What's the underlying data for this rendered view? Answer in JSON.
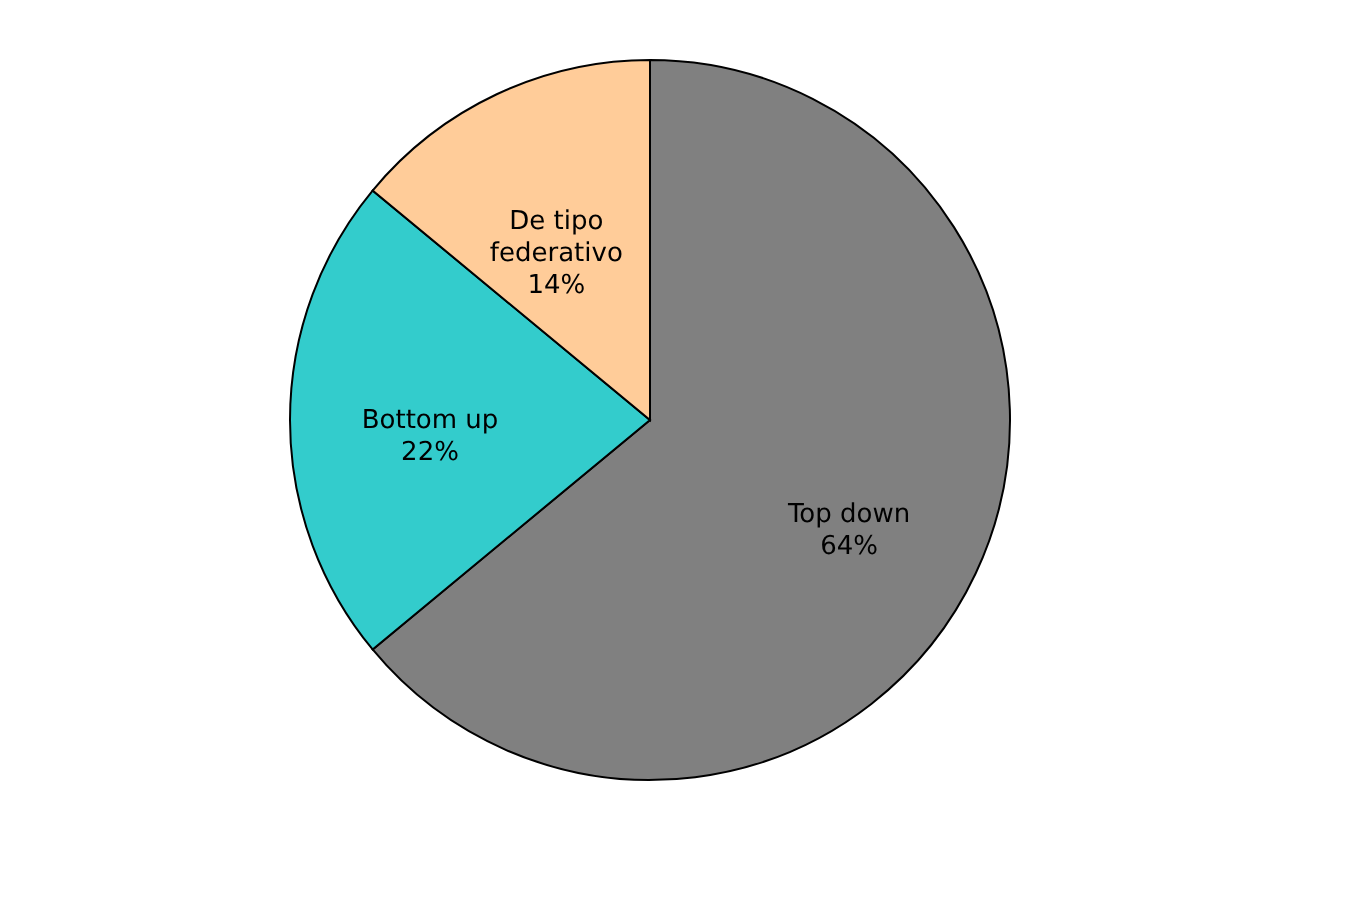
{
  "chart_data": {
    "type": "pie",
    "categories": [
      "Top down",
      "Bottom up",
      "De tipo federativo"
    ],
    "values": [
      64,
      22,
      14
    ],
    "value_labels": [
      "64%",
      "22%",
      "14%"
    ],
    "colors": [
      "#808080",
      "#33cccc",
      "#ffcc99"
    ],
    "legend": false
  }
}
